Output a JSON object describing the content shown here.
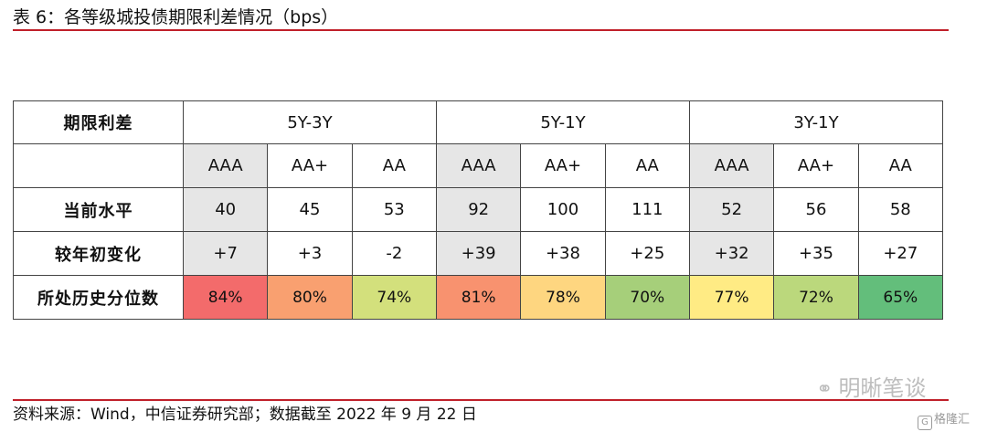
{
  "title": "表 6：各等级城投债期限利差情况（bps）",
  "table": {
    "corner_label": "期限利差",
    "groups": [
      "5Y-3Y",
      "5Y-1Y",
      "3Y-1Y"
    ],
    "ratings": [
      "AAA",
      "AA+",
      "AA",
      "AAA",
      "AA+",
      "AA",
      "AAA",
      "AA+",
      "AA"
    ],
    "rows": [
      {
        "label": "当前水平",
        "values": [
          "40",
          "45",
          "53",
          "92",
          "100",
          "111",
          "52",
          "56",
          "58"
        ]
      },
      {
        "label": "较年初变化",
        "values": [
          "+7",
          "+3",
          "-2",
          "+39",
          "+38",
          "+25",
          "+32",
          "+35",
          "+27"
        ]
      },
      {
        "label": "所处历史分位数",
        "values": [
          "84%",
          "80%",
          "74%",
          "81%",
          "78%",
          "70%",
          "77%",
          "72%",
          "65%"
        ],
        "colors": [
          "#f36b6b",
          "#f9a070",
          "#d3e07c",
          "#f8926f",
          "#fed680",
          "#a6cf7a",
          "#ffeb84",
          "#bbd87c",
          "#63be7b"
        ]
      }
    ]
  },
  "source": "资料来源：Wind，中信证券研究部；数据截至 2022 年 9 月 22 日",
  "watermark": {
    "text": "明晰笔谈",
    "icon": "wechat-icon"
  },
  "brand": {
    "text": "格隆汇",
    "icon": "gelonghui-logo-icon"
  }
}
